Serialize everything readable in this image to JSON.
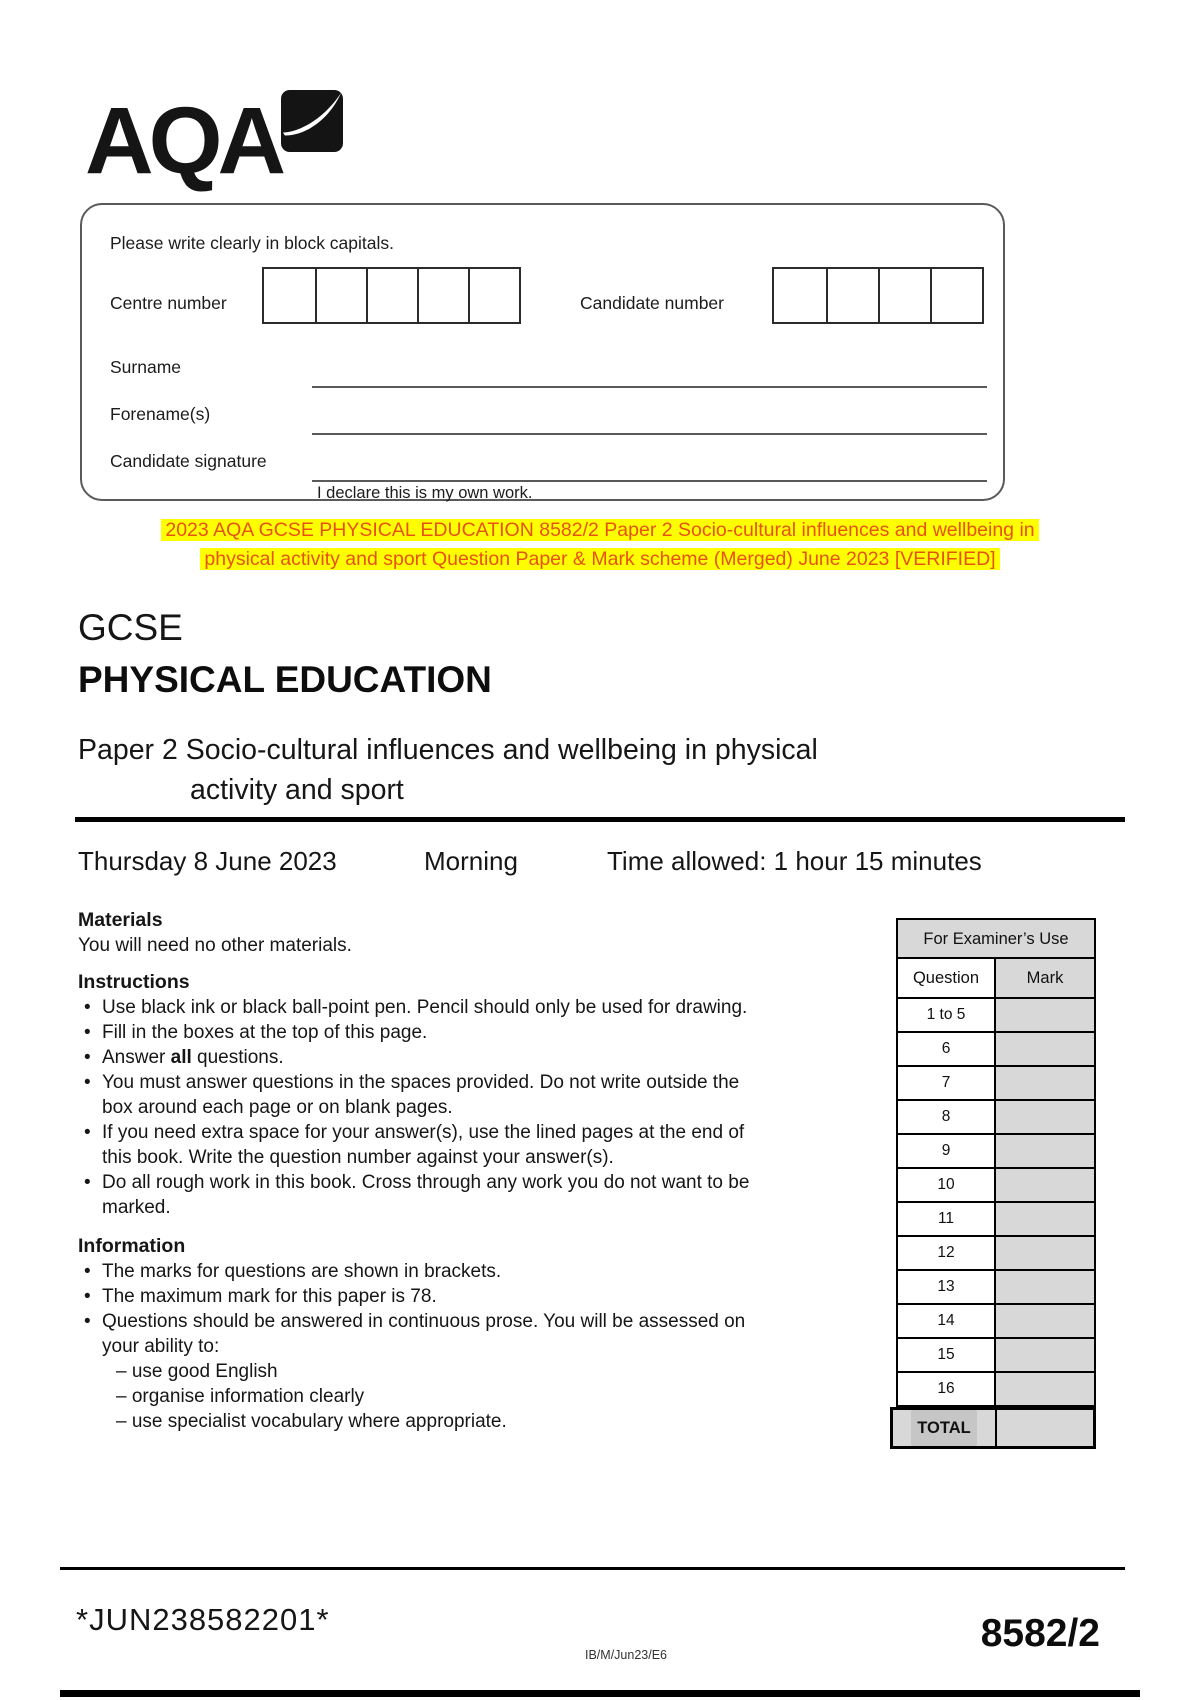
{
  "logo": {
    "text": "AQA"
  },
  "candidate_form": {
    "instruction": "Please write clearly in block capitals.",
    "centre_number_label": "Centre number",
    "centre_number_cells": 5,
    "candidate_number_label": "Candidate number",
    "candidate_number_cells": 4,
    "surname_label": "Surname",
    "forenames_label": "Forename(s)",
    "signature_label": "Candidate signature",
    "declaration": "I declare this is my own work."
  },
  "banner": {
    "line1": "2023 AQA GCSE PHYSICAL EDUCATION 8582/2 Paper 2 Socio-cultural influences and wellbeing in",
    "line2": "physical activity and sport Question Paper & Mark scheme (Merged) June 2023 [VERIFIED]",
    "highlight_color": "#ffff00",
    "text_color": "#e65211"
  },
  "titles": {
    "qualification": "GCSE",
    "subject": "PHYSICAL EDUCATION",
    "paper_line1": "Paper 2 Socio-cultural influences and wellbeing in physical",
    "paper_line2": "activity and sport"
  },
  "session": {
    "date": "Thursday 8 June 2023",
    "period": "Morning",
    "time_allowed": "Time allowed: 1 hour 15 minutes"
  },
  "materials": {
    "heading": "Materials",
    "body": "You will need no other materials."
  },
  "instructions": {
    "heading": "Instructions",
    "items": [
      {
        "lines": [
          "Use black ink or black ball-point pen. Pencil should only be used for drawing."
        ]
      },
      {
        "lines": [
          "Fill in the boxes at the top of this page."
        ]
      },
      {
        "segments": [
          {
            "t": "Answer "
          },
          {
            "t": "all",
            "b": true
          },
          {
            "t": " questions."
          }
        ]
      },
      {
        "lines": [
          "You must answer questions in the spaces provided. Do not write outside the",
          "box around each page or on blank pages."
        ]
      },
      {
        "lines": [
          "If you need extra space for your answer(s), use the lined pages at the end of",
          "this book. Write the question number against your answer(s)."
        ]
      },
      {
        "lines": [
          "Do all rough work in this book. Cross through any work you do not want to be",
          "marked."
        ]
      }
    ]
  },
  "information": {
    "heading": "Information",
    "items": [
      {
        "lines": [
          "The marks for questions are shown in brackets."
        ]
      },
      {
        "lines": [
          "The maximum mark for this paper is 78."
        ]
      },
      {
        "lines": [
          "Questions should be answered in continuous prose. You will be assessed on",
          "your ability to:"
        ],
        "sub": [
          "– use good English",
          "– organise information clearly",
          "– use specialist vocabulary where appropriate."
        ]
      }
    ]
  },
  "examiner_table": {
    "title": "For Examiner’s Use",
    "col_question": "Question",
    "col_mark": "Mark",
    "rows": [
      "1 to 5",
      "6",
      "7",
      "8",
      "9",
      "10",
      "11",
      "12",
      "13",
      "14",
      "15",
      "16"
    ],
    "total_label": "TOTAL",
    "shade_color": "#d8d8d8"
  },
  "footer": {
    "barcode_text": "*JUN238582201*",
    "ref": "IB/M/Jun23/E6",
    "paper_code": "8582/2"
  }
}
